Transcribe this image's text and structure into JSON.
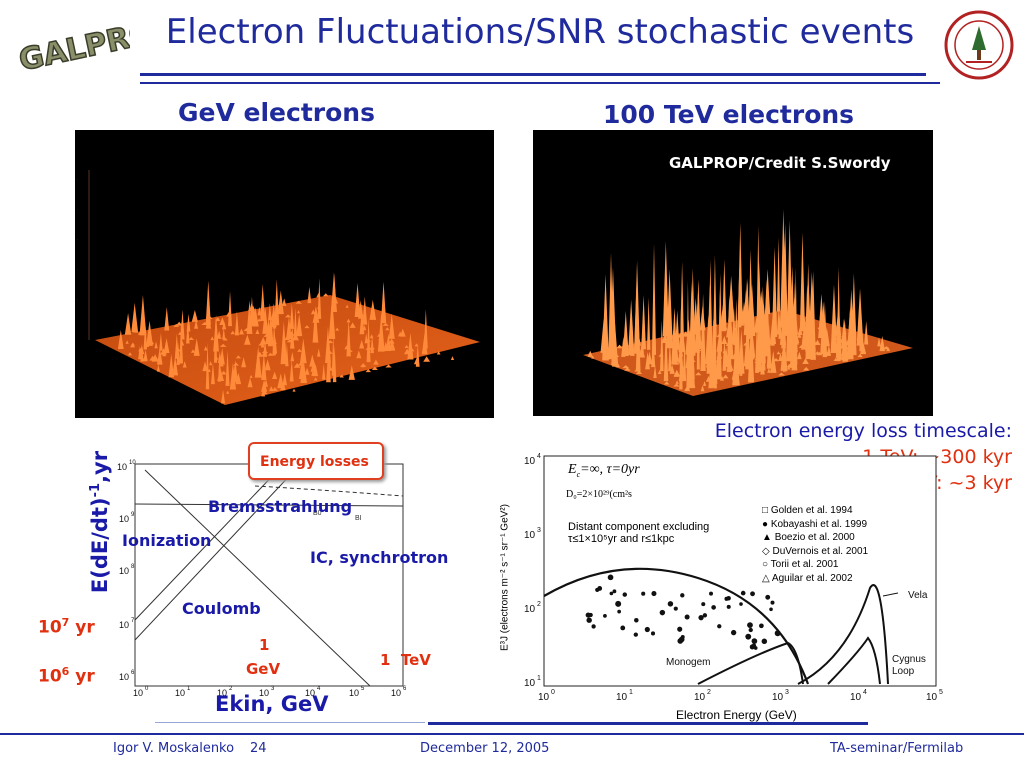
{
  "slide": {
    "title": "Electron Fluctuations/SNR stochastic events",
    "logo_left_text": "GALPROP",
    "seal_right_text": "LELAND STANFORD JUNIOR UNIVERSITY · ORGANIZED 1891"
  },
  "panels": {
    "left_heading": "GeV electrons",
    "right_heading": "100 TeV electrons",
    "credit": "GALPROP/Credit S.Swordy"
  },
  "loss_chart": {
    "ylabel": "E(dE/dt)",
    "ylabel_sup": "-1",
    "ylabel_tail": ",yr",
    "xlabel": "Ekin, GeV",
    "box_label": "Energy losses",
    "curve_labels": {
      "brems": "Bremsstrahlung",
      "ionization": "Ionization",
      "ic": "IC, synchrotron",
      "coulomb": "Coulomb",
      "gev_top": "1",
      "gev_bottom": "GeV",
      "tev": "1  TeV"
    },
    "side_left_1": "10",
    "side_left_1_sup": "7",
    "side_left_1_unit": " yr",
    "side_left_2": "10",
    "side_left_2_sup": "6",
    "side_left_2_unit": " yr",
    "tiny_labels": {
      "b0": "B0",
      "bi": "BI"
    }
  },
  "timescale_note": {
    "line1": "Electron energy loss timescale:",
    "line2": "1 TeV: ~300 kyr",
    "line3": "100 TeV: ~3 kyr"
  },
  "spectrum_chart": {
    "xlabel": "Electron Energy (GeV)",
    "params_line1": "E",
    "params_line2": "D₀=2×10²⁹(cm²s",
    "annotation_1": "Distant component excluding",
    "annotation_2": "τ≤1×10⁵yr and r≤1kpc",
    "legend": [
      "Golden et al. 1994",
      "Kobayashi et al. 1999",
      "Boezio et al. 2000",
      "DuVernois et al. 2001",
      "Torii et al. 2001",
      "Aguilar et al. 2002"
    ],
    "source_labels": {
      "vela": "Vela",
      "cygnus": "Cygnus",
      "loop": "Loop",
      "monogem": "Monogem"
    },
    "ylabel": "E³J (electrons m⁻² s⁻¹ sr⁻¹ GeV²)"
  },
  "footer": {
    "author": "Igor V. Moskalenko",
    "page": "24",
    "date": "December 12, 2005",
    "venue": "TA-seminar/Fermilab"
  },
  "colors": {
    "title_blue": "#1f2a9c",
    "accent_red": "#e03010",
    "box_border": "#e04020"
  }
}
